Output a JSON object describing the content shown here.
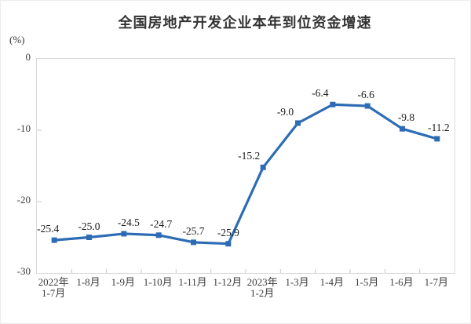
{
  "page": {
    "title": "全国房地产开发企业本年到位资金增速",
    "unit_label": "(%)"
  },
  "chart_data": {
    "type": "line",
    "title": "全国房地产开发企业本年到位资金增速",
    "ylabel": "(%)",
    "xlabel": "",
    "ylim": [
      -30,
      0
    ],
    "yticks": [
      0,
      -10,
      -20,
      -30
    ],
    "grid": false,
    "legend_position": "none",
    "categories": [
      [
        "2022年",
        "1-7月"
      ],
      [
        "1-8月"
      ],
      [
        "1-9月"
      ],
      [
        "1-10月"
      ],
      [
        "1-11月"
      ],
      [
        "1-12月"
      ],
      [
        "2023年",
        "1-2月"
      ],
      [
        "1-3月"
      ],
      [
        "1-4月"
      ],
      [
        "1-5月"
      ],
      [
        "1-6月"
      ],
      [
        "1-7月"
      ]
    ],
    "values": [
      -25.4,
      -25.0,
      -24.5,
      -24.7,
      -25.7,
      -25.9,
      -15.2,
      -9.0,
      -6.4,
      -6.6,
      -9.8,
      -11.2
    ],
    "data_labels": [
      "-25.4",
      "-25.0",
      "-24.5",
      "-24.7",
      "-25.7",
      "-25.9",
      "-15.2",
      "-9.0",
      "-6.4",
      "-6.6",
      "-9.8",
      "-11.2"
    ],
    "label_dx": [
      -8,
      0,
      6,
      3,
      0,
      0,
      -18,
      -16,
      -16,
      -2,
      5,
      2
    ],
    "line_color": "#2d6cb5",
    "marker": "square",
    "axis_color": "#d9d9d9",
    "tick_color": "#c8c8c8"
  }
}
